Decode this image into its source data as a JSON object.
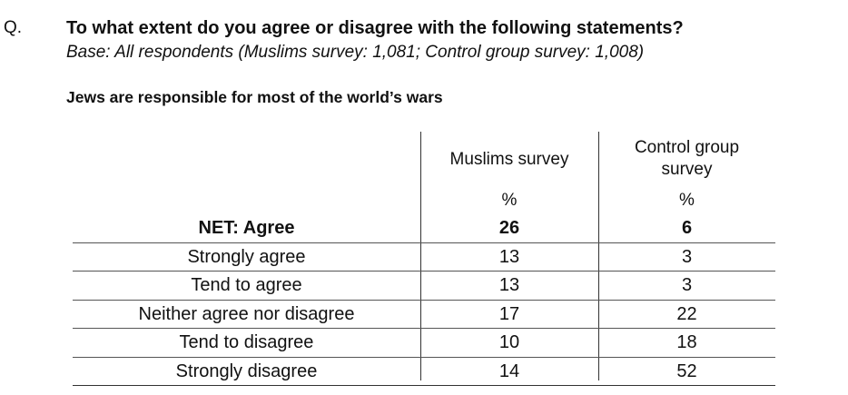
{
  "question": {
    "prefix": "Q.",
    "text": "To what extent do you agree or disagree with the following statements?",
    "base": "Base: All respondents (Muslims survey: 1,081; Control group survey: 1,008)"
  },
  "statement": "Jews are responsible for most of the world’s wars",
  "table": {
    "columns": [
      {
        "header": "Muslims survey",
        "unit": "%"
      },
      {
        "header": "Control group\nsurvey",
        "unit": "%"
      }
    ],
    "rows": [
      {
        "label": "NET: Agree",
        "values": [
          "26",
          "6"
        ]
      },
      {
        "label": "Strongly agree",
        "values": [
          "13",
          "3"
        ]
      },
      {
        "label": "Tend to agree",
        "values": [
          "13",
          "3"
        ]
      },
      {
        "label": "Neither agree nor disagree",
        "values": [
          "17",
          "22"
        ]
      },
      {
        "label": "Tend to disagree",
        "values": [
          "10",
          "18"
        ]
      },
      {
        "label": "Strongly disagree",
        "values": [
          "14",
          "52"
        ]
      }
    ]
  }
}
